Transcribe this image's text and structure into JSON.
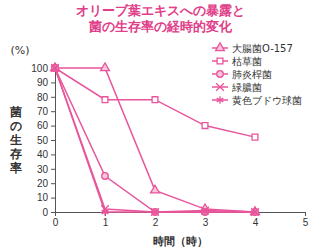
{
  "chart_data": {
    "type": "line",
    "title": [
      "オリーブ葉エキスへの暴露と",
      "菌の生存率の経時的変化"
    ],
    "y_unit": "(%)",
    "ylabel": "菌の生存率",
    "xlabel": "時間（時）",
    "x": [
      0,
      1,
      2,
      3,
      4
    ],
    "xlim": [
      0,
      5
    ],
    "xticks": [
      0,
      1,
      2,
      3,
      4,
      5
    ],
    "ylim": [
      0,
      100
    ],
    "yticks": [
      0,
      10,
      20,
      30,
      40,
      50,
      60,
      70,
      80,
      90,
      100
    ],
    "grid": false,
    "legend": "upper right",
    "series": [
      {
        "name": "大腸菌O-157",
        "color": "#e8559b",
        "marker": "triangle",
        "values": [
          100,
          100,
          15,
          2,
          0
        ]
      },
      {
        "name": "枯草菌",
        "color": "#e8559b",
        "marker": "square",
        "values": [
          100,
          78,
          78,
          60,
          52
        ]
      },
      {
        "name": "肺炎桿菌",
        "color": "#e8559b",
        "marker": "circle",
        "values": [
          100,
          25,
          0,
          0,
          0
        ]
      },
      {
        "name": "緑膿菌",
        "color": "#e8559b",
        "marker": "x",
        "values": [
          100,
          2,
          0,
          1,
          0
        ]
      },
      {
        "name": "黄色ブドウ球菌",
        "color": "#e8559b",
        "marker": "asterisk",
        "values": [
          100,
          0,
          0,
          0,
          0
        ]
      }
    ]
  }
}
